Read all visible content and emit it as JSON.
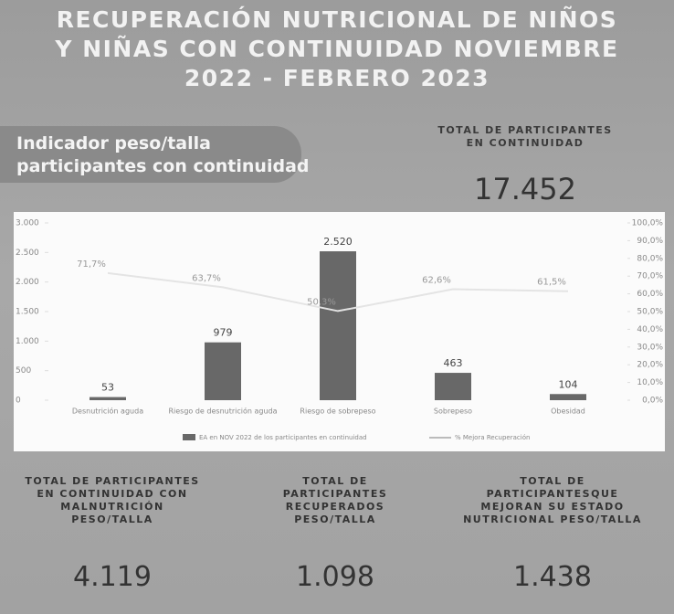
{
  "header": {
    "title_lines": [
      "RECUPERACIÓN NUTRICIONAL DE NIÑOS",
      "Y NIÑAS CON CONTINUIDAD NOVIEMBRE",
      "2022 - FEBRERO 2023"
    ],
    "subtitle_lines": [
      "Indicador peso/talla",
      "participantes con continuidad"
    ],
    "total": {
      "label_lines": [
        "TOTAL DE PARTICIPANTES",
        "EN CONTINUIDAD"
      ],
      "value": "17.452"
    }
  },
  "chart_data": {
    "type": "bar",
    "categories": [
      "Desnutrición aguda",
      "Riesgo de desnutrición aguda",
      "Riesgo de sobrepeso",
      "Sobrepeso",
      "Obesidad"
    ],
    "series": [
      {
        "name": "EA en NOV 2022 de los participantes en continuidad",
        "type": "bar",
        "color": "#686868",
        "values": [
          53,
          979,
          2520,
          463,
          104
        ],
        "value_labels": [
          "53",
          "979",
          "2.520",
          "463",
          "104"
        ]
      },
      {
        "name": "% Mejora Recuperación",
        "type": "line",
        "axis": "y2",
        "color": "#e4e4e4",
        "values": [
          71.7,
          63.7,
          50.3,
          62.6,
          61.5
        ],
        "value_labels": [
          "71,7%",
          "63,7%",
          "50,3%",
          "62,6%",
          "61,5%"
        ]
      }
    ],
    "ylim": [
      0,
      3000
    ],
    "yticks": [
      {
        "value": 0,
        "label": "0"
      },
      {
        "value": 500,
        "label": "500"
      },
      {
        "value": 1000,
        "label": "1.000"
      },
      {
        "value": 1500,
        "label": "1.500"
      },
      {
        "value": 2000,
        "label": "2.000"
      },
      {
        "value": 2500,
        "label": "2.500"
      },
      {
        "value": 3000,
        "label": "3.000"
      }
    ],
    "y2lim": [
      0,
      100
    ],
    "y2ticks": [
      {
        "value": 0,
        "label": "0,0%"
      },
      {
        "value": 10,
        "label": "10,0%"
      },
      {
        "value": 20,
        "label": "20,0%"
      },
      {
        "value": 30,
        "label": "30,0%"
      },
      {
        "value": 40,
        "label": "40,0%"
      },
      {
        "value": 50,
        "label": "50,0%"
      },
      {
        "value": 60,
        "label": "60,0%"
      },
      {
        "value": 70,
        "label": "70,0%"
      },
      {
        "value": 80,
        "label": "80,0%"
      },
      {
        "value": 90,
        "label": "90,0%"
      },
      {
        "value": 100,
        "label": "100,0%"
      }
    ],
    "grid": false,
    "legend": "bottom"
  },
  "stats": [
    {
      "label_lines": [
        "TOTAL DE PARTICIPANTES",
        "EN CONTINUIDAD CON",
        "MALNUTRICIÓN",
        "PESO/TALLA"
      ],
      "value": "4.119"
    },
    {
      "label_lines": [
        "TOTAL DE",
        "PARTICIPANTES",
        "RECUPERADOS",
        "PESO/TALLA"
      ],
      "value": "1.098"
    },
    {
      "label_lines": [
        "TOTAL DE",
        "PARTICIPANTESQUE",
        "MEJORAN SU ESTADO",
        "NUTRICIONAL PESO/TALLA"
      ],
      "value": "1.438"
    }
  ]
}
